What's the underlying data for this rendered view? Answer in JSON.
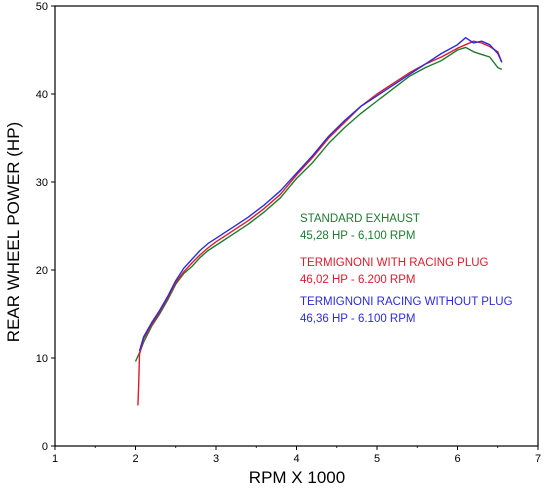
{
  "chart_data": {
    "type": "line",
    "title": "",
    "xlabel": "RPM X 1000",
    "ylabel": "REAR WHEEL POWER (HP)",
    "xlim": [
      1,
      7
    ],
    "ylim": [
      0,
      50
    ],
    "x_ticks": [
      1,
      2,
      3,
      4,
      5,
      6,
      7
    ],
    "y_ticks": [
      0,
      10,
      20,
      30,
      40,
      50
    ],
    "grid": true,
    "legend_placement": "center-right",
    "series": [
      {
        "name": "STANDARD EXHAUST",
        "detail": "45,28 HP - 6,100 RPM",
        "color": "#1e7a2e",
        "points": [
          [
            2.0,
            9.6
          ],
          [
            2.05,
            10.6
          ],
          [
            2.1,
            11.8
          ],
          [
            2.2,
            13.6
          ],
          [
            2.3,
            15.0
          ],
          [
            2.4,
            16.6
          ],
          [
            2.5,
            18.4
          ],
          [
            2.6,
            19.6
          ],
          [
            2.7,
            20.4
          ],
          [
            2.8,
            21.4
          ],
          [
            2.9,
            22.2
          ],
          [
            3.0,
            22.8
          ],
          [
            3.2,
            24.0
          ],
          [
            3.4,
            25.2
          ],
          [
            3.6,
            26.6
          ],
          [
            3.8,
            28.2
          ],
          [
            4.0,
            30.4
          ],
          [
            4.2,
            32.2
          ],
          [
            4.4,
            34.4
          ],
          [
            4.6,
            36.2
          ],
          [
            4.8,
            37.8
          ],
          [
            5.0,
            39.2
          ],
          [
            5.2,
            40.6
          ],
          [
            5.4,
            42.0
          ],
          [
            5.6,
            43.0
          ],
          [
            5.8,
            43.8
          ],
          [
            6.0,
            45.0
          ],
          [
            6.1,
            45.3
          ],
          [
            6.2,
            44.8
          ],
          [
            6.3,
            44.5
          ],
          [
            6.4,
            44.2
          ],
          [
            6.5,
            43.0
          ],
          [
            6.55,
            42.8
          ]
        ]
      },
      {
        "name": "TERMIGNONI WITH RACING PLUG",
        "detail": "46,02 HP - 6.200 RPM",
        "color": "#e01a2a",
        "points": [
          [
            2.03,
            4.6
          ],
          [
            2.04,
            7.0
          ],
          [
            2.05,
            10.4
          ],
          [
            2.1,
            12.2
          ],
          [
            2.2,
            13.8
          ],
          [
            2.3,
            15.2
          ],
          [
            2.4,
            16.8
          ],
          [
            2.5,
            18.6
          ],
          [
            2.6,
            19.8
          ],
          [
            2.7,
            20.8
          ],
          [
            2.8,
            21.7
          ],
          [
            2.9,
            22.5
          ],
          [
            3.0,
            23.2
          ],
          [
            3.2,
            24.4
          ],
          [
            3.4,
            25.6
          ],
          [
            3.6,
            27.0
          ],
          [
            3.8,
            28.6
          ],
          [
            4.0,
            30.8
          ],
          [
            4.2,
            32.8
          ],
          [
            4.4,
            35.0
          ],
          [
            4.6,
            36.8
          ],
          [
            4.8,
            38.6
          ],
          [
            5.0,
            40.0
          ],
          [
            5.2,
            41.2
          ],
          [
            5.4,
            42.4
          ],
          [
            5.6,
            43.4
          ],
          [
            5.8,
            44.2
          ],
          [
            6.0,
            45.2
          ],
          [
            6.1,
            45.6
          ],
          [
            6.2,
            46.0
          ],
          [
            6.3,
            45.8
          ],
          [
            6.4,
            45.4
          ],
          [
            6.5,
            44.8
          ],
          [
            6.55,
            43.6
          ]
        ]
      },
      {
        "name": "TERMIGNONI RACING WITHOUT PLUG",
        "detail": "46,36 HP - 6.100 RPM",
        "color": "#2b2be0",
        "points": [
          [
            2.05,
            10.8
          ],
          [
            2.1,
            12.4
          ],
          [
            2.2,
            14.0
          ],
          [
            2.3,
            15.4
          ],
          [
            2.4,
            17.0
          ],
          [
            2.5,
            18.8
          ],
          [
            2.6,
            20.2
          ],
          [
            2.7,
            21.2
          ],
          [
            2.8,
            22.2
          ],
          [
            2.9,
            23.0
          ],
          [
            3.0,
            23.6
          ],
          [
            3.2,
            24.8
          ],
          [
            3.4,
            26.0
          ],
          [
            3.6,
            27.4
          ],
          [
            3.8,
            29.0
          ],
          [
            4.0,
            31.0
          ],
          [
            4.2,
            33.0
          ],
          [
            4.4,
            35.2
          ],
          [
            4.6,
            37.0
          ],
          [
            4.8,
            38.6
          ],
          [
            5.0,
            39.8
          ],
          [
            5.2,
            41.0
          ],
          [
            5.4,
            42.2
          ],
          [
            5.6,
            43.4
          ],
          [
            5.8,
            44.6
          ],
          [
            6.0,
            45.6
          ],
          [
            6.1,
            46.4
          ],
          [
            6.2,
            45.8
          ],
          [
            6.3,
            46.0
          ],
          [
            6.4,
            45.6
          ],
          [
            6.5,
            44.6
          ],
          [
            6.55,
            43.6
          ]
        ]
      }
    ]
  }
}
